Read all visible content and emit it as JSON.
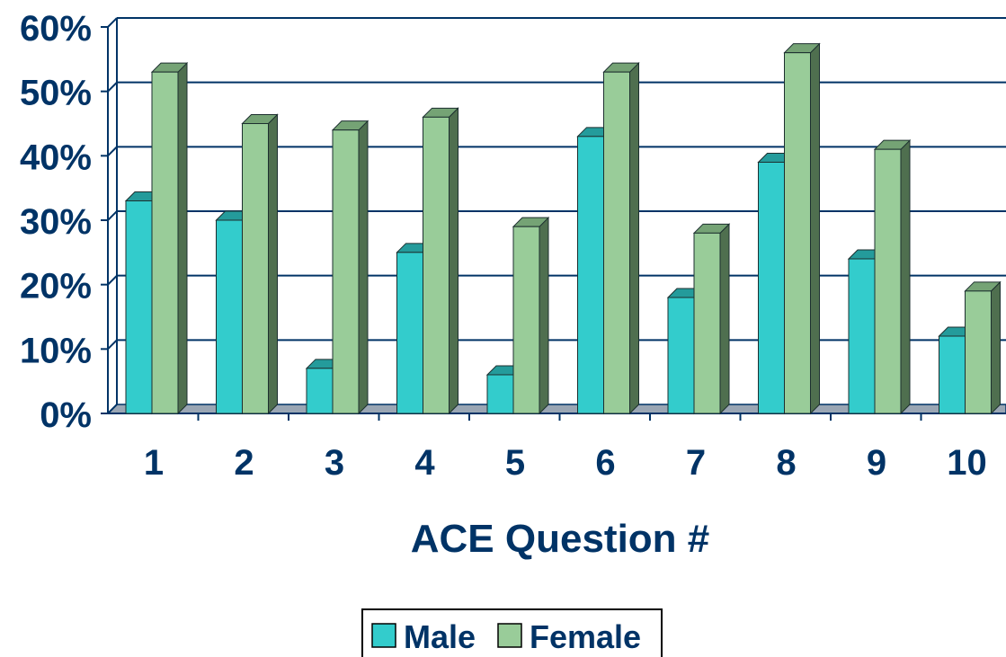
{
  "chart_data": {
    "type": "bar",
    "title": "",
    "xlabel": "ACE Question #",
    "ylabel": "",
    "categories": [
      "1",
      "2",
      "3",
      "4",
      "5",
      "6",
      "7",
      "8",
      "9",
      "10"
    ],
    "series": [
      {
        "name": "Male",
        "values": [
          33,
          30,
          7,
          25,
          6,
          43,
          18,
          39,
          24,
          12
        ]
      },
      {
        "name": "Female",
        "values": [
          53,
          45,
          44,
          46,
          29,
          53,
          28,
          56,
          41,
          19
        ]
      }
    ],
    "ylim": [
      0,
      60
    ],
    "yticks": [
      "0%",
      "10%",
      "20%",
      "30%",
      "40%",
      "50%",
      "60%"
    ],
    "grid": true,
    "legend": {
      "position": "bottom",
      "entries": [
        "Male",
        "Female"
      ]
    },
    "style": "3d-clustered-columns",
    "colors": {
      "male_front": "#33CCCC",
      "male_top": "#249B9B",
      "male_side": "#1E7F7F",
      "female_front": "#99CC99",
      "female_top": "#75A375",
      "female_side": "#4F6F4F",
      "text": "#003366",
      "axis": "#003366"
    }
  }
}
